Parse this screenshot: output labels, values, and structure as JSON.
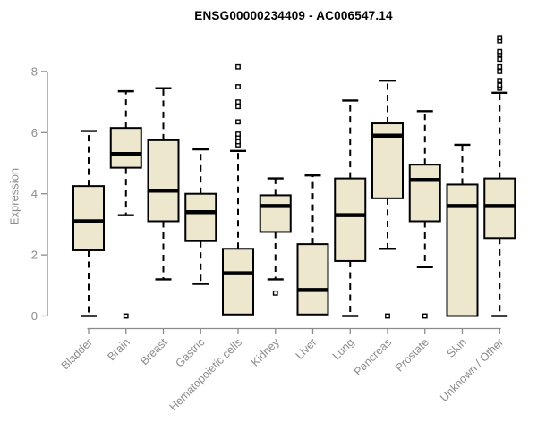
{
  "chart_data": {
    "type": "boxplot",
    "title": "ENSG00000234409 - AC006547.14",
    "ylabel": "Expression",
    "xlabel": "",
    "ylim": [
      0,
      9.3
    ],
    "yticks": [
      0,
      2,
      4,
      6,
      8
    ],
    "grid": false,
    "legend": "none",
    "categories": [
      "Bladder",
      "Brain",
      "Breast",
      "Gastric",
      "Hematopoietic cells",
      "Kidney",
      "Liver",
      "Lung",
      "Pancreas",
      "Prostate",
      "Skin",
      "Unknown / Other"
    ],
    "boxes": [
      {
        "category": "Bladder",
        "whisker_low": 0.0,
        "q1": 2.15,
        "median": 3.1,
        "q3": 4.25,
        "whisker_high": 6.05,
        "outliers": []
      },
      {
        "category": "Brain",
        "whisker_low": 3.3,
        "q1": 4.85,
        "median": 5.3,
        "q3": 6.15,
        "whisker_high": 7.35,
        "outliers": [
          0.0
        ]
      },
      {
        "category": "Breast",
        "whisker_low": 1.2,
        "q1": 3.1,
        "median": 4.1,
        "q3": 5.75,
        "whisker_high": 7.45,
        "outliers": []
      },
      {
        "category": "Gastric",
        "whisker_low": 1.05,
        "q1": 2.45,
        "median": 3.4,
        "q3": 4.0,
        "whisker_high": 5.45,
        "outliers": []
      },
      {
        "category": "Hematopoietic cells",
        "whisker_low": 0.05,
        "q1": 0.05,
        "median": 1.4,
        "q3": 2.2,
        "whisker_high": 5.4,
        "outliers": [
          5.6,
          5.7,
          5.85,
          5.95,
          6.35,
          6.85,
          7.0,
          7.5,
          8.15
        ]
      },
      {
        "category": "Kidney",
        "whisker_low": 1.2,
        "q1": 2.75,
        "median": 3.6,
        "q3": 3.95,
        "whisker_high": 4.5,
        "outliers": [
          0.75
        ]
      },
      {
        "category": "Liver",
        "whisker_low": 0.05,
        "q1": 0.05,
        "median": 0.85,
        "q3": 2.35,
        "whisker_high": 4.6,
        "outliers": []
      },
      {
        "category": "Lung",
        "whisker_low": 0.0,
        "q1": 1.8,
        "median": 3.3,
        "q3": 4.5,
        "whisker_high": 7.05,
        "outliers": []
      },
      {
        "category": "Pancreas",
        "whisker_low": 2.2,
        "q1": 3.85,
        "median": 5.9,
        "q3": 6.3,
        "whisker_high": 7.7,
        "outliers": [
          0.0
        ]
      },
      {
        "category": "Prostate",
        "whisker_low": 1.6,
        "q1": 3.1,
        "median": 4.45,
        "q3": 4.95,
        "whisker_high": 6.7,
        "outliers": [
          0.0
        ]
      },
      {
        "category": "Skin",
        "whisker_low": 0.0,
        "q1": 0.0,
        "median": 3.6,
        "q3": 4.3,
        "whisker_high": 5.6,
        "outliers": []
      },
      {
        "category": "Unknown / Other",
        "whisker_low": 0.0,
        "q1": 2.55,
        "median": 3.6,
        "q3": 4.5,
        "whisker_high": 7.3,
        "outliers": [
          7.45,
          7.55,
          7.7,
          8.0,
          8.15,
          8.4,
          8.55,
          8.65,
          9.0,
          9.1
        ]
      }
    ],
    "colors": {
      "box_fill": "#EDE7CD",
      "box_stroke": "#000000",
      "median": "#000000",
      "whisker": "#000000",
      "outlier_stroke": "#000000",
      "outlier_fill": "#FFFFFF",
      "axis": "#8B8B8B",
      "tick_label": "#8B8B8B",
      "title": "#000000"
    }
  }
}
